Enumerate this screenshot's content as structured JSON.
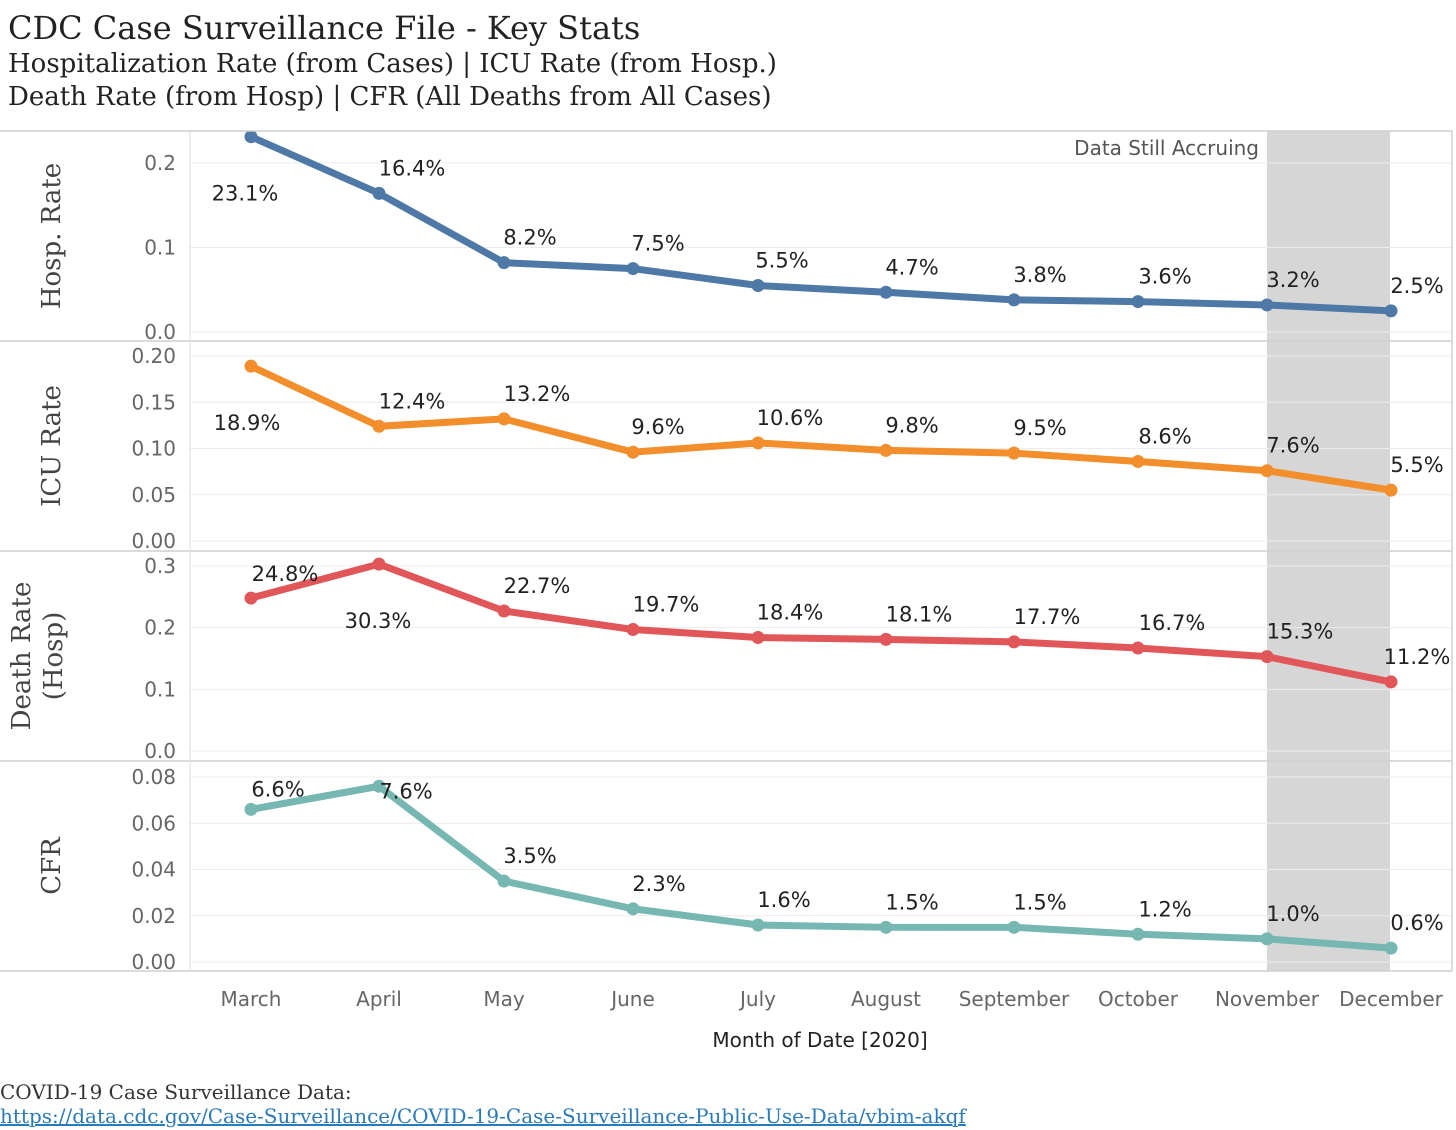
{
  "header": {
    "title": "CDC Case Surveillance File - Key Stats",
    "subtitle_line1": "Hospitalization Rate (from Cases) | ICU Rate (from Hosp.)",
    "subtitle_line2": "Death Rate (from Hosp) | CFR (All Deaths from All Cases)"
  },
  "source": {
    "label": "COVID-19 Case Surveillance Data:",
    "link": "https://data.cdc.gov/Case-Surveillance/COVID-19-Case-Surveillance-Public-Use-Data/vbim-akqf"
  },
  "chart_data": {
    "type": "line",
    "xlabel": "Month of Date [2020]",
    "categories": [
      "March",
      "April",
      "May",
      "June",
      "July",
      "August",
      "September",
      "October",
      "November",
      "December"
    ],
    "shaded_band": {
      "from": "November",
      "to": "December",
      "label": "Data Still Accruing",
      "color": "#d6d6d6"
    },
    "grid": true,
    "panels": [
      {
        "ylabel": "Hosp. Rate",
        "color": "#4e79a7",
        "ylim": [
          0,
          0.22
        ],
        "ticks": [
          {
            "v": 0.0,
            "t": "0.0"
          },
          {
            "v": 0.1,
            "t": "0.1"
          },
          {
            "v": 0.2,
            "t": "0.2"
          }
        ],
        "values": [
          0.231,
          0.164,
          0.082,
          0.075,
          0.055,
          0.047,
          0.038,
          0.036,
          0.032,
          0.025
        ],
        "labels": [
          "23.1%",
          "16.4%",
          "8.2%",
          "7.5%",
          "5.5%",
          "4.7%",
          "3.8%",
          "3.6%",
          "3.2%",
          "2.5%"
        ]
      },
      {
        "ylabel": "ICU Rate",
        "color": "#f28e2b",
        "ylim": [
          0,
          0.2
        ],
        "ticks": [
          {
            "v": 0.0,
            "t": "0.00"
          },
          {
            "v": 0.05,
            "t": "0.05"
          },
          {
            "v": 0.1,
            "t": "0.10"
          },
          {
            "v": 0.15,
            "t": "0.15"
          },
          {
            "v": 0.2,
            "t": "0.20"
          }
        ],
        "values": [
          0.189,
          0.124,
          0.132,
          0.096,
          0.106,
          0.098,
          0.095,
          0.086,
          0.076,
          0.055
        ],
        "labels": [
          "18.9%",
          "12.4%",
          "13.2%",
          "9.6%",
          "10.6%",
          "9.8%",
          "9.5%",
          "8.6%",
          "7.6%",
          "5.5%"
        ]
      },
      {
        "ylabel": "Death Rate (Hosp)",
        "ylabel_lines": [
          "Death Rate",
          "(Hosp)"
        ],
        "color": "#e15759",
        "ylim": [
          0,
          0.3
        ],
        "ticks": [
          {
            "v": 0.0,
            "t": "0.0"
          },
          {
            "v": 0.1,
            "t": "0.1"
          },
          {
            "v": 0.2,
            "t": "0.2"
          },
          {
            "v": 0.3,
            "t": "0.3"
          }
        ],
        "values": [
          0.248,
          0.303,
          0.227,
          0.197,
          0.184,
          0.181,
          0.177,
          0.167,
          0.153,
          0.112
        ],
        "labels": [
          "24.8%",
          "30.3%",
          "22.7%",
          "19.7%",
          "18.4%",
          "18.1%",
          "17.7%",
          "16.7%",
          "15.3%",
          "11.2%"
        ]
      },
      {
        "ylabel": "CFR",
        "color": "#76b7b2",
        "ylim": [
          0,
          0.08
        ],
        "ticks": [
          {
            "v": 0.0,
            "t": "0.00"
          },
          {
            "v": 0.02,
            "t": "0.02"
          },
          {
            "v": 0.04,
            "t": "0.04"
          },
          {
            "v": 0.06,
            "t": "0.06"
          },
          {
            "v": 0.08,
            "t": "0.08"
          }
        ],
        "values": [
          0.066,
          0.076,
          0.035,
          0.023,
          0.016,
          0.015,
          0.015,
          0.012,
          0.01,
          0.006
        ],
        "labels": [
          "6.6%",
          "7.6%",
          "3.5%",
          "2.3%",
          "1.6%",
          "1.5%",
          "1.5%",
          "1.2%",
          "1.0%",
          "0.6%"
        ]
      }
    ]
  }
}
